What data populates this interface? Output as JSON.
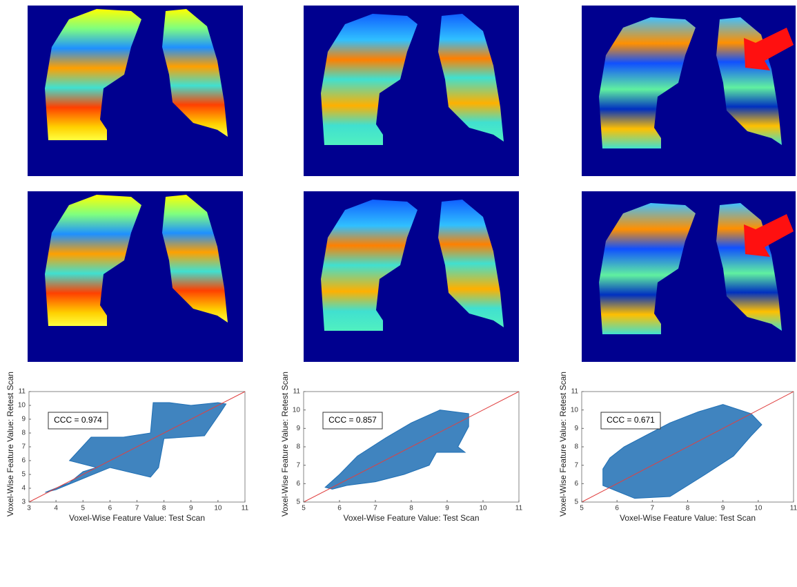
{
  "chart_data": [
    {
      "type": "scatter",
      "x_label": "Voxel-Wise Feature Value: Test Scan",
      "y_label": "Voxel-Wise Feature Value: Retest Scan",
      "annotation": "CCC = 0.974",
      "xlim": [
        3,
        11
      ],
      "ylim": [
        3,
        11
      ],
      "xticks": [
        3,
        4,
        5,
        6,
        7,
        8,
        9,
        10,
        11
      ],
      "yticks": [
        3,
        4,
        5,
        6,
        7,
        8,
        9,
        10,
        11
      ],
      "series": [
        {
          "color": "#1f6fb4",
          "x": [
            3.6,
            4.5,
            5,
            5.5,
            4.5,
            5.3,
            6.5,
            7.5,
            7.6,
            8.2,
            9,
            10,
            10.3,
            10.1,
            9.5,
            8,
            7.8,
            7.5,
            6,
            5,
            4
          ],
          "y": [
            3.7,
            4.4,
            5.2,
            5.5,
            6,
            7.7,
            7.7,
            8,
            10.2,
            10.2,
            10,
            10.2,
            10.1,
            9.5,
            7.8,
            7.6,
            5.5,
            4.8,
            5.5,
            4.7,
            3.9
          ]
        }
      ]
    },
    {
      "type": "scatter",
      "x_label": "Voxel-Wise Feature Value: Test Scan",
      "y_label": "Voxel-Wise Feature Value: Retest Scan",
      "annotation": "CCC = 0.857",
      "xlim": [
        5,
        11
      ],
      "ylim": [
        5,
        11
      ],
      "xticks": [
        5,
        6,
        7,
        8,
        9,
        10,
        11
      ],
      "yticks": [
        5,
        6,
        7,
        8,
        9,
        10,
        11
      ],
      "series": [
        {
          "color": "#1f6fb4",
          "x": [
            5.6,
            6,
            6.5,
            7.3,
            8,
            8.8,
            9.6,
            9.6,
            9.3,
            9.5,
            8.7,
            8.5,
            7.8,
            7,
            6.2,
            5.8
          ],
          "y": [
            5.8,
            6.5,
            7.5,
            8.5,
            9.3,
            10,
            9.8,
            9.1,
            8,
            7.7,
            7.7,
            7,
            6.5,
            6.1,
            5.9,
            5.7
          ]
        }
      ]
    },
    {
      "type": "scatter",
      "x_label": "Voxel-Wise Feature Value: Test Scan",
      "y_label": "Voxel-Wise Feature Value: Retest Scan",
      "annotation": "CCC = 0.671",
      "xlim": [
        5,
        11
      ],
      "ylim": [
        5,
        11
      ],
      "xticks": [
        5,
        6,
        7,
        8,
        9,
        10,
        11
      ],
      "yticks": [
        5,
        6,
        7,
        8,
        9,
        10,
        11
      ],
      "series": [
        {
          "color": "#1f6fb4",
          "x": [
            5.6,
            5.6,
            6.5,
            7.5,
            8.5,
            9.3,
            9.8,
            10.1,
            9.8,
            9,
            8.3,
            7.5,
            6.8,
            6.2,
            5.8
          ],
          "y": [
            6.8,
            5.9,
            5.2,
            5.3,
            6.5,
            7.5,
            8.6,
            9.2,
            9.8,
            10.3,
            9.9,
            9.3,
            8.6,
            8,
            7.4
          ]
        }
      ]
    }
  ]
}
